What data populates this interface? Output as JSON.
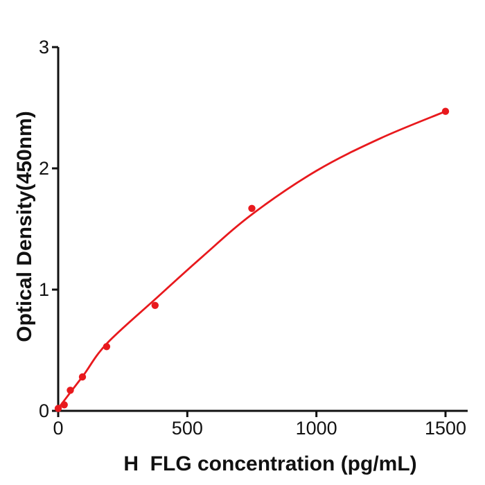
{
  "chart_data": {
    "type": "scatter",
    "title": "",
    "xlabel": "H  FLG concentration (pg/mL)",
    "ylabel": "Optical Density(450nm)",
    "x_ticks": [
      0,
      500,
      1000,
      1500
    ],
    "y_ticks": [
      0,
      1,
      2,
      3
    ],
    "xlim": [
      0,
      1585
    ],
    "ylim": [
      0,
      3
    ],
    "grid": false,
    "legend_position": "none",
    "series": [
      {
        "name": "standard-points",
        "type": "scatter",
        "x": [
          0,
          23.4,
          46.9,
          93.8,
          187.5,
          375,
          750,
          1500
        ],
        "y": [
          0.02,
          0.05,
          0.17,
          0.28,
          0.53,
          0.87,
          1.67,
          2.47
        ]
      },
      {
        "name": "fitted-curve",
        "type": "line",
        "x": [
          0,
          50,
          100,
          188,
          375,
          560,
          750,
          1000,
          1250,
          1500
        ],
        "y": [
          0.02,
          0.16,
          0.3,
          0.555,
          0.92,
          1.275,
          1.62,
          1.98,
          2.25,
          2.47
        ]
      }
    ],
    "colors": {
      "series": "#e8191d",
      "axis": "#111111",
      "text": "#111111",
      "background": "#ffffff"
    }
  }
}
